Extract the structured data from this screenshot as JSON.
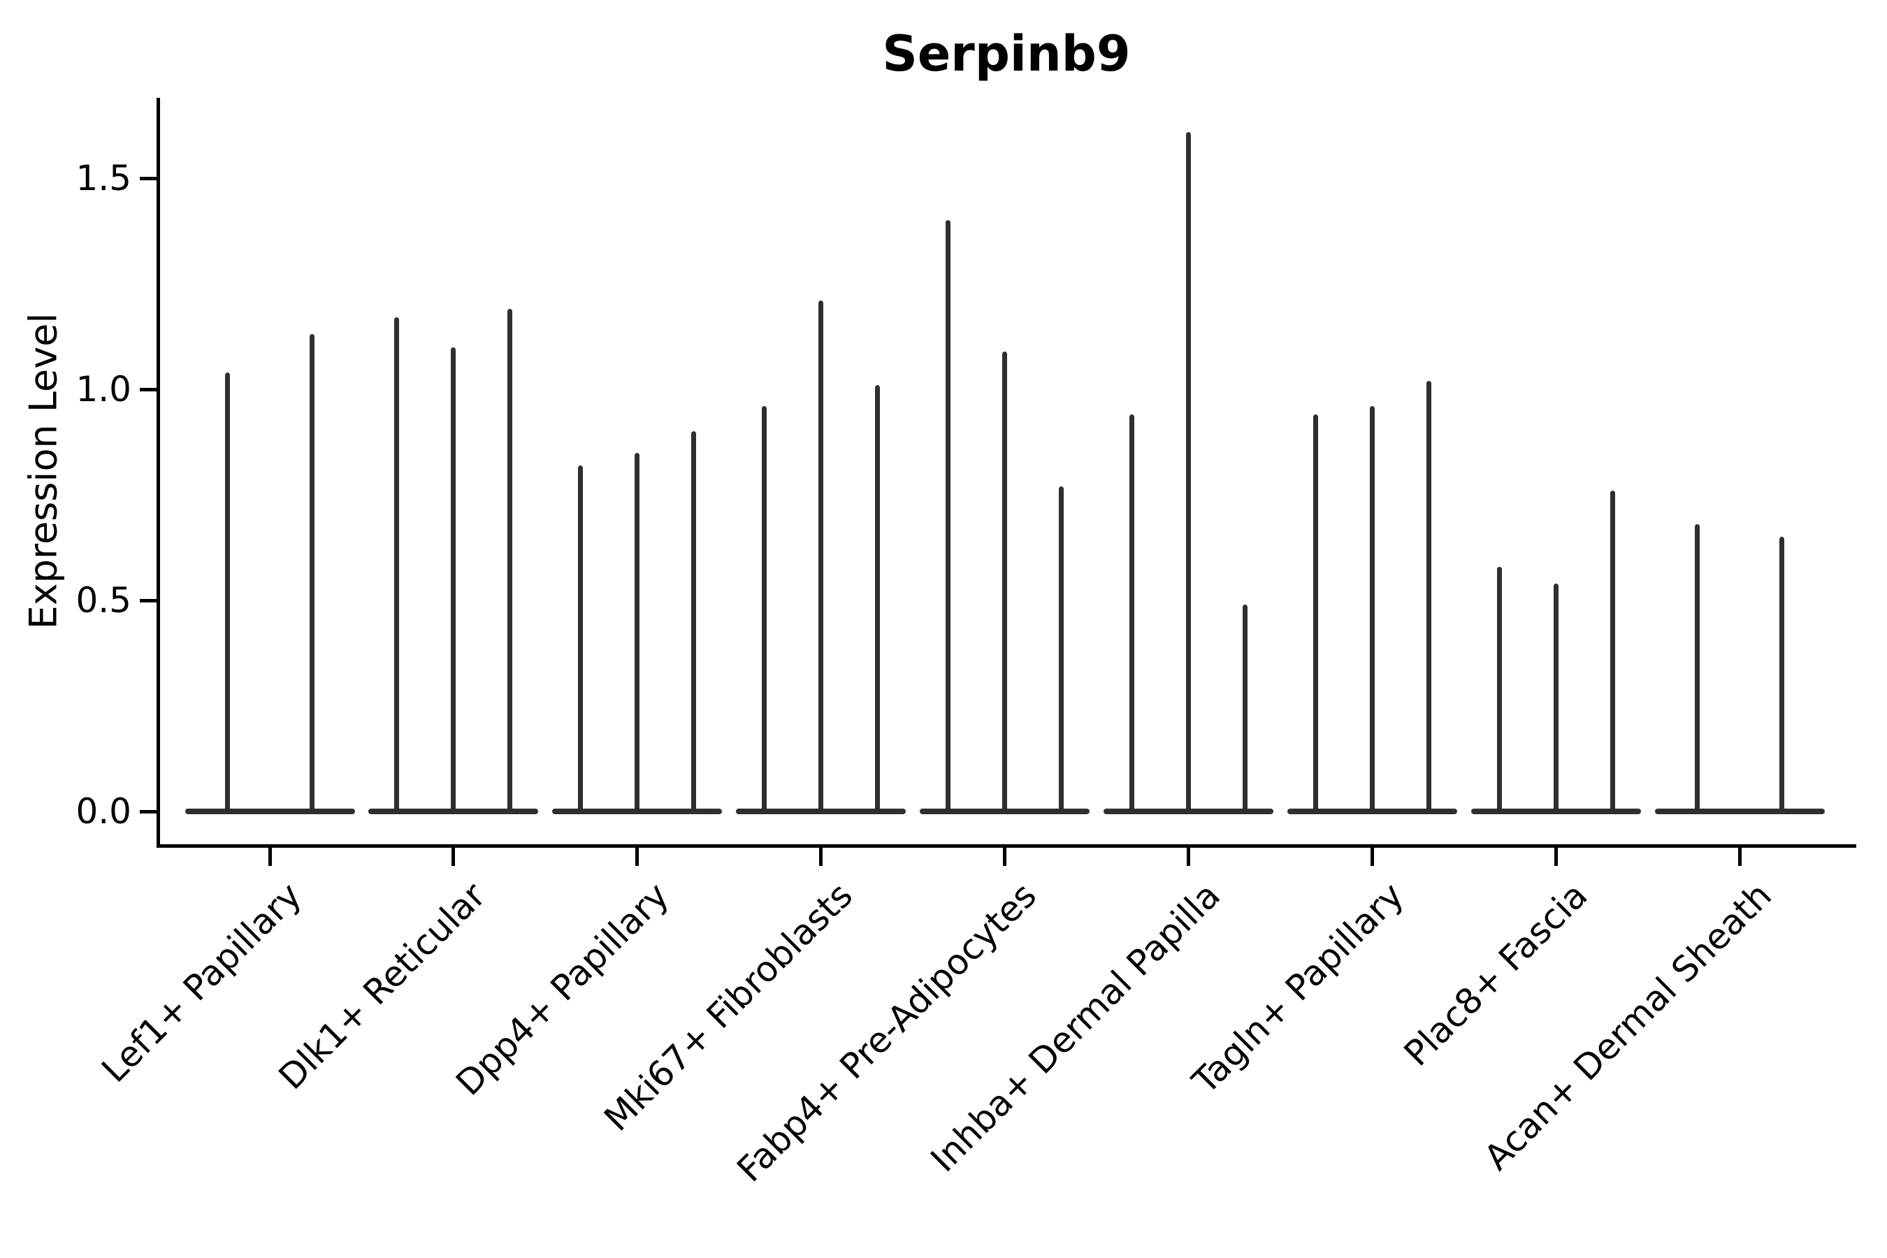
{
  "chart_data": {
    "type": "violin",
    "title": "Serpinb9",
    "ylabel": "Expression Level",
    "xlabel": "",
    "ytick_labels": [
      "0.0",
      "0.5",
      "1.0",
      "1.5"
    ],
    "ylim": [
      -0.08,
      1.69
    ],
    "grid": false,
    "legend": false,
    "violin_color": "#2f2f2f",
    "axis_color": "#000000",
    "groups": [
      {
        "category": "Lef1+ Papillary",
        "violins": [
          1.04,
          1.13
        ]
      },
      {
        "category": "Dlk1+ Reticular",
        "violins": [
          1.17,
          1.1,
          1.19
        ]
      },
      {
        "category": "Dpp4+ Papillary",
        "violins": [
          0.82,
          0.85,
          0.9
        ]
      },
      {
        "category": "Mki67+ Fibroblasts",
        "violins": [
          0.96,
          1.21,
          1.01
        ]
      },
      {
        "category": "Fabp4+ Pre-Adipocytes",
        "violins": [
          1.4,
          1.09,
          0.77
        ]
      },
      {
        "category": "Inhba+ Dermal Papilla",
        "violins": [
          0.94,
          1.61,
          0.49
        ]
      },
      {
        "category": "Tagln+ Papillary",
        "violins": [
          0.94,
          0.96,
          1.02
        ]
      },
      {
        "category": "Plac8+ Fascia",
        "violins": [
          0.58,
          0.54,
          0.76
        ]
      },
      {
        "category": "Acan+ Dermal Sheath",
        "violins": [
          0.68,
          0.65
        ]
      }
    ]
  }
}
